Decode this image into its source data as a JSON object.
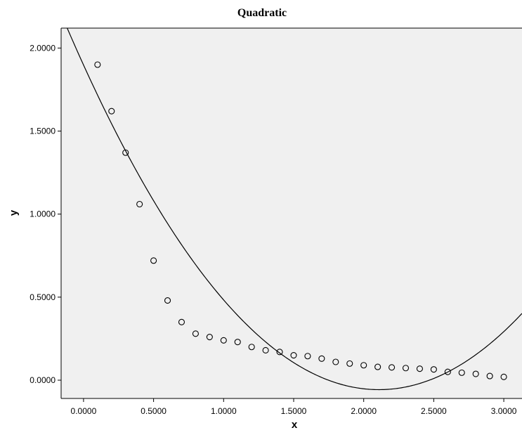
{
  "chart_data": {
    "type": "scatter",
    "title": "Quadratic",
    "xlabel": "x",
    "ylabel": "y",
    "xlim": [
      -0.16,
      3.13
    ],
    "ylim": [
      -0.11,
      2.12
    ],
    "xticks": [
      0,
      0.5,
      1.0,
      1.5,
      2.0,
      2.5,
      3.0
    ],
    "xtick_labels": [
      "0.0000",
      "0.5000",
      "1.0000",
      "1.5000",
      "2.0000",
      "2.5000",
      "3.0000"
    ],
    "yticks": [
      0,
      0.5,
      1.0,
      1.5,
      2.0
    ],
    "ytick_labels": [
      "0.0000",
      "0.5000",
      "1.0000",
      "1.5000",
      "2.0000"
    ],
    "grid": false,
    "background": "#f0f0f0",
    "series": [
      {
        "kind": "observed",
        "marker": "open-circle",
        "x": [
          0.1,
          0.2,
          0.3,
          0.4,
          0.5,
          0.6,
          0.7,
          0.8,
          0.9,
          1.0,
          1.1,
          1.2,
          1.3,
          1.4,
          1.5,
          1.6,
          1.7,
          1.8,
          1.9,
          2.0,
          2.1,
          2.2,
          2.3,
          2.4,
          2.5,
          2.6,
          2.7,
          2.8,
          2.9,
          3.0
        ],
        "y": [
          1.9,
          1.62,
          1.37,
          1.06,
          0.72,
          0.48,
          0.35,
          0.28,
          0.26,
          0.24,
          0.23,
          0.2,
          0.18,
          0.17,
          0.15,
          0.145,
          0.13,
          0.11,
          0.1,
          0.09,
          0.08,
          0.077,
          0.073,
          0.069,
          0.065,
          0.05,
          0.045,
          0.038,
          0.025,
          0.02
        ]
      },
      {
        "kind": "quadratic-fit",
        "line": "solid",
        "coefficients": {
          "a": 0.4397,
          "b": -1.8542,
          "c": 1.8978
        }
      }
    ]
  }
}
